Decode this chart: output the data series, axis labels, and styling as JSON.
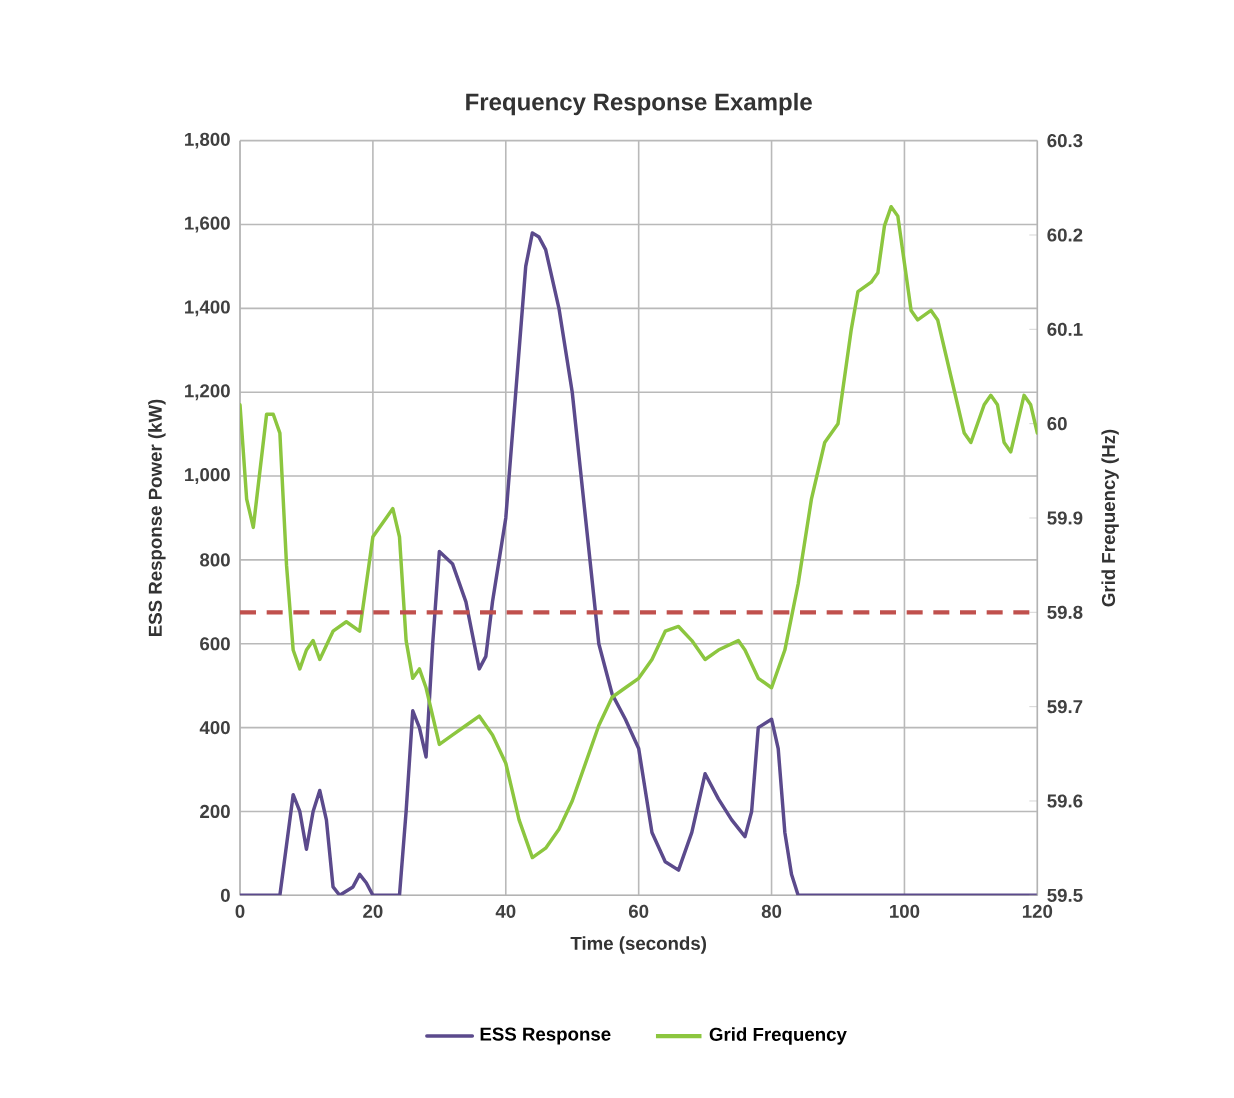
{
  "chart_data": {
    "type": "line",
    "title": "Frequency Response Example",
    "xlabel": "Time (seconds)",
    "ylabel": "ESS Response Power (kW)",
    "y2label": "Grid Frequency (Hz)",
    "xlim": [
      0,
      120
    ],
    "xticks": [
      0,
      20,
      40,
      60,
      80,
      100,
      120
    ],
    "ylim": [
      0,
      1800
    ],
    "yticks": [
      0,
      200,
      400,
      600,
      800,
      {
        "value": 1000,
        "label": "1,000"
      },
      {
        "value": 1200,
        "label": "1,200"
      },
      {
        "value": 1400,
        "label": "1,400"
      },
      {
        "value": 1600,
        "label": "1,600"
      },
      {
        "value": 1800,
        "label": "1,800"
      }
    ],
    "y2lim": [
      59.5,
      60.3
    ],
    "y2ticks": [
      59.5,
      59.6,
      59.7,
      59.8,
      59.9,
      60,
      60.1,
      60.2,
      60.3
    ],
    "grid": true,
    "legend": "bottom",
    "marker": "none",
    "ref_lines": [
      {
        "axis": "y2",
        "value": 59.8,
        "color": "#c0504d",
        "line_style": "dashed"
      }
    ],
    "series": [
      {
        "name": "ESS Response",
        "color": "#5b4a8c",
        "x": [
          0,
          5,
          6,
          7,
          8,
          9,
          10,
          11,
          12,
          13,
          14,
          15,
          17,
          18,
          19,
          20,
          24,
          25,
          26,
          27,
          28,
          29,
          30,
          32,
          34,
          36,
          37,
          38,
          40,
          42,
          43,
          44,
          45,
          46,
          48,
          50,
          52,
          54,
          56,
          58,
          60,
          62,
          64,
          66,
          68,
          70,
          72,
          74,
          76,
          77,
          78,
          80,
          81,
          82,
          83,
          84,
          85,
          120
        ],
        "values": [
          0,
          0,
          0,
          120,
          240,
          200,
          110,
          200,
          250,
          180,
          20,
          0,
          20,
          50,
          30,
          0,
          0,
          200,
          440,
          400,
          330,
          600,
          820,
          790,
          700,
          540,
          570,
          700,
          900,
          1300,
          1500,
          1580,
          1570,
          1540,
          1400,
          1200,
          900,
          600,
          480,
          420,
          350,
          150,
          80,
          60,
          150,
          290,
          230,
          180,
          140,
          200,
          400,
          420,
          350,
          150,
          50,
          0,
          0,
          0
        ]
      },
      {
        "name": "Grid Frequency",
        "color": "#8cc63f",
        "axis": "y2",
        "x": [
          0,
          1,
          2,
          3,
          4,
          5,
          6,
          7,
          8,
          9,
          10,
          11,
          12,
          14,
          16,
          18,
          20,
          22,
          23,
          24,
          25,
          26,
          27,
          28,
          30,
          32,
          34,
          36,
          38,
          40,
          42,
          44,
          46,
          48,
          50,
          52,
          54,
          56,
          58,
          60,
          62,
          64,
          66,
          68,
          70,
          72,
          75,
          76,
          78,
          80,
          82,
          84,
          86,
          88,
          90,
          92,
          93,
          95,
          96,
          97,
          98,
          99,
          100,
          101,
          102,
          104,
          105,
          107,
          109,
          110,
          112,
          113,
          114,
          115,
          116,
          117,
          118,
          119,
          120
        ],
        "values": [
          60.02,
          59.92,
          59.89,
          59.95,
          60.01,
          60.01,
          59.99,
          59.85,
          59.76,
          59.74,
          59.76,
          59.77,
          59.75,
          59.78,
          59.79,
          59.78,
          59.88,
          59.9,
          59.91,
          59.88,
          59.77,
          59.73,
          59.74,
          59.72,
          59.66,
          59.67,
          59.68,
          59.69,
          59.67,
          59.64,
          59.58,
          59.54,
          59.55,
          59.57,
          59.6,
          59.64,
          59.68,
          59.71,
          59.72,
          59.73,
          59.75,
          59.78,
          59.785,
          59.77,
          59.75,
          59.76,
          59.77,
          59.76,
          59.73,
          59.72,
          59.76,
          59.83,
          59.92,
          59.98,
          60.0,
          60.1,
          60.14,
          60.15,
          60.16,
          60.21,
          60.23,
          60.22,
          60.17,
          60.12,
          60.11,
          60.12,
          60.11,
          60.05,
          59.99,
          59.98,
          60.02,
          60.03,
          60.02,
          59.98,
          59.97,
          60.0,
          60.03,
          60.02,
          59.99
        ]
      }
    ]
  }
}
